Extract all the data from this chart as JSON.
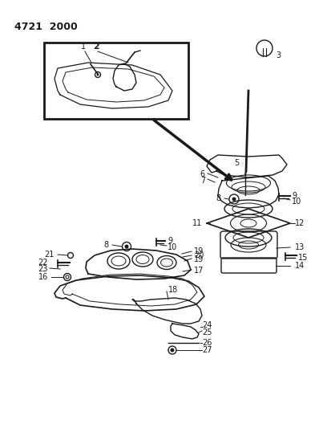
{
  "title_text": "4721  2000",
  "bg_color": "#ffffff",
  "line_color": "#1a1a1a",
  "text_color": "#1a1a1a",
  "font_size_labels": 7,
  "fig_width": 4.08,
  "fig_height": 5.33,
  "dpi": 100
}
